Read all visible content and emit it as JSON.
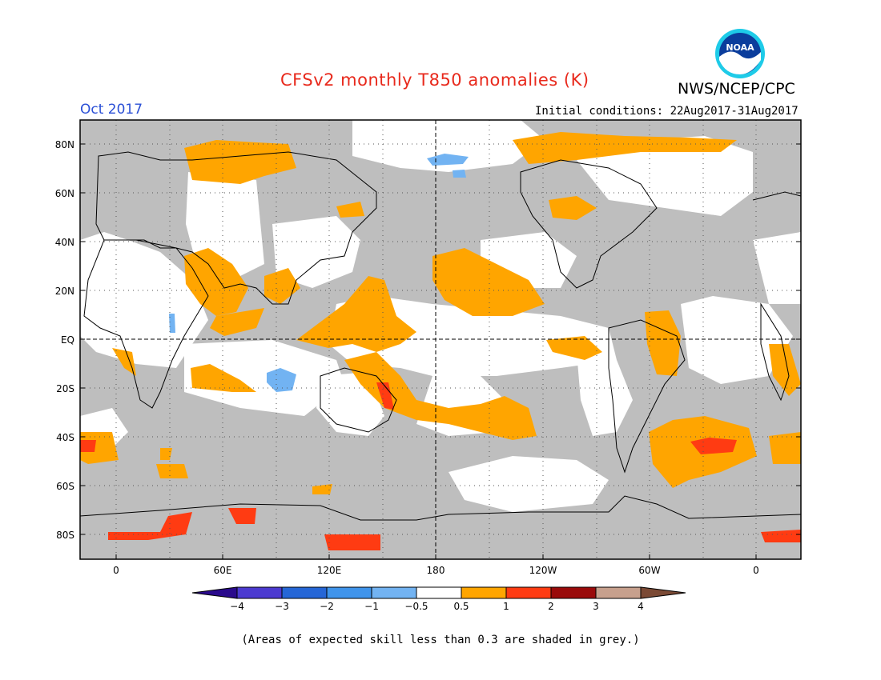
{
  "header": {
    "title": "CFSv2 monthly T850 anomalies (K)",
    "month": "Oct 2017",
    "initial_conditions": "Initial conditions: 22Aug2017-31Aug2017",
    "organization": "NWS/NCEP/CPC",
    "logo_text": "NOAA"
  },
  "map": {
    "projection": "equirectangular",
    "lon_range": [
      -20,
      380
    ],
    "lat_range": [
      -90,
      90
    ],
    "lat_ticks": [
      "80N",
      "60N",
      "40N",
      "20N",
      "EQ",
      "20S",
      "40S",
      "60S",
      "80S"
    ],
    "lon_ticks": [
      "0",
      "60E",
      "120E",
      "180",
      "120W",
      "60W",
      "0"
    ],
    "colors": {
      "grey_low_skill": "#bebebe",
      "neutral": "#ffffff",
      "pos_0_5_1": "#ffa500",
      "pos_1_2": "#ff3b12",
      "pos_2_3": "#9a0a0a",
      "pos_3_4": "#c7a08d",
      "neg_0_5_1": "#72b3f2",
      "neg_1_2": "#3f94eb"
    }
  },
  "colorbar": {
    "labels": [
      "−4",
      "−3",
      "−2",
      "−1",
      "−0.5",
      "0.5",
      "1",
      "2",
      "3",
      "4"
    ],
    "colors": [
      "#2a0a8c",
      "#4b3ad0",
      "#2566d6",
      "#3f94eb",
      "#72b3f2",
      "#ffffff",
      "#ffa500",
      "#ff3b12",
      "#9a0a0a",
      "#c7a08d",
      "#7b4a35"
    ]
  },
  "footnote": "(Areas of expected skill less than 0.3 are shaded in grey.)"
}
